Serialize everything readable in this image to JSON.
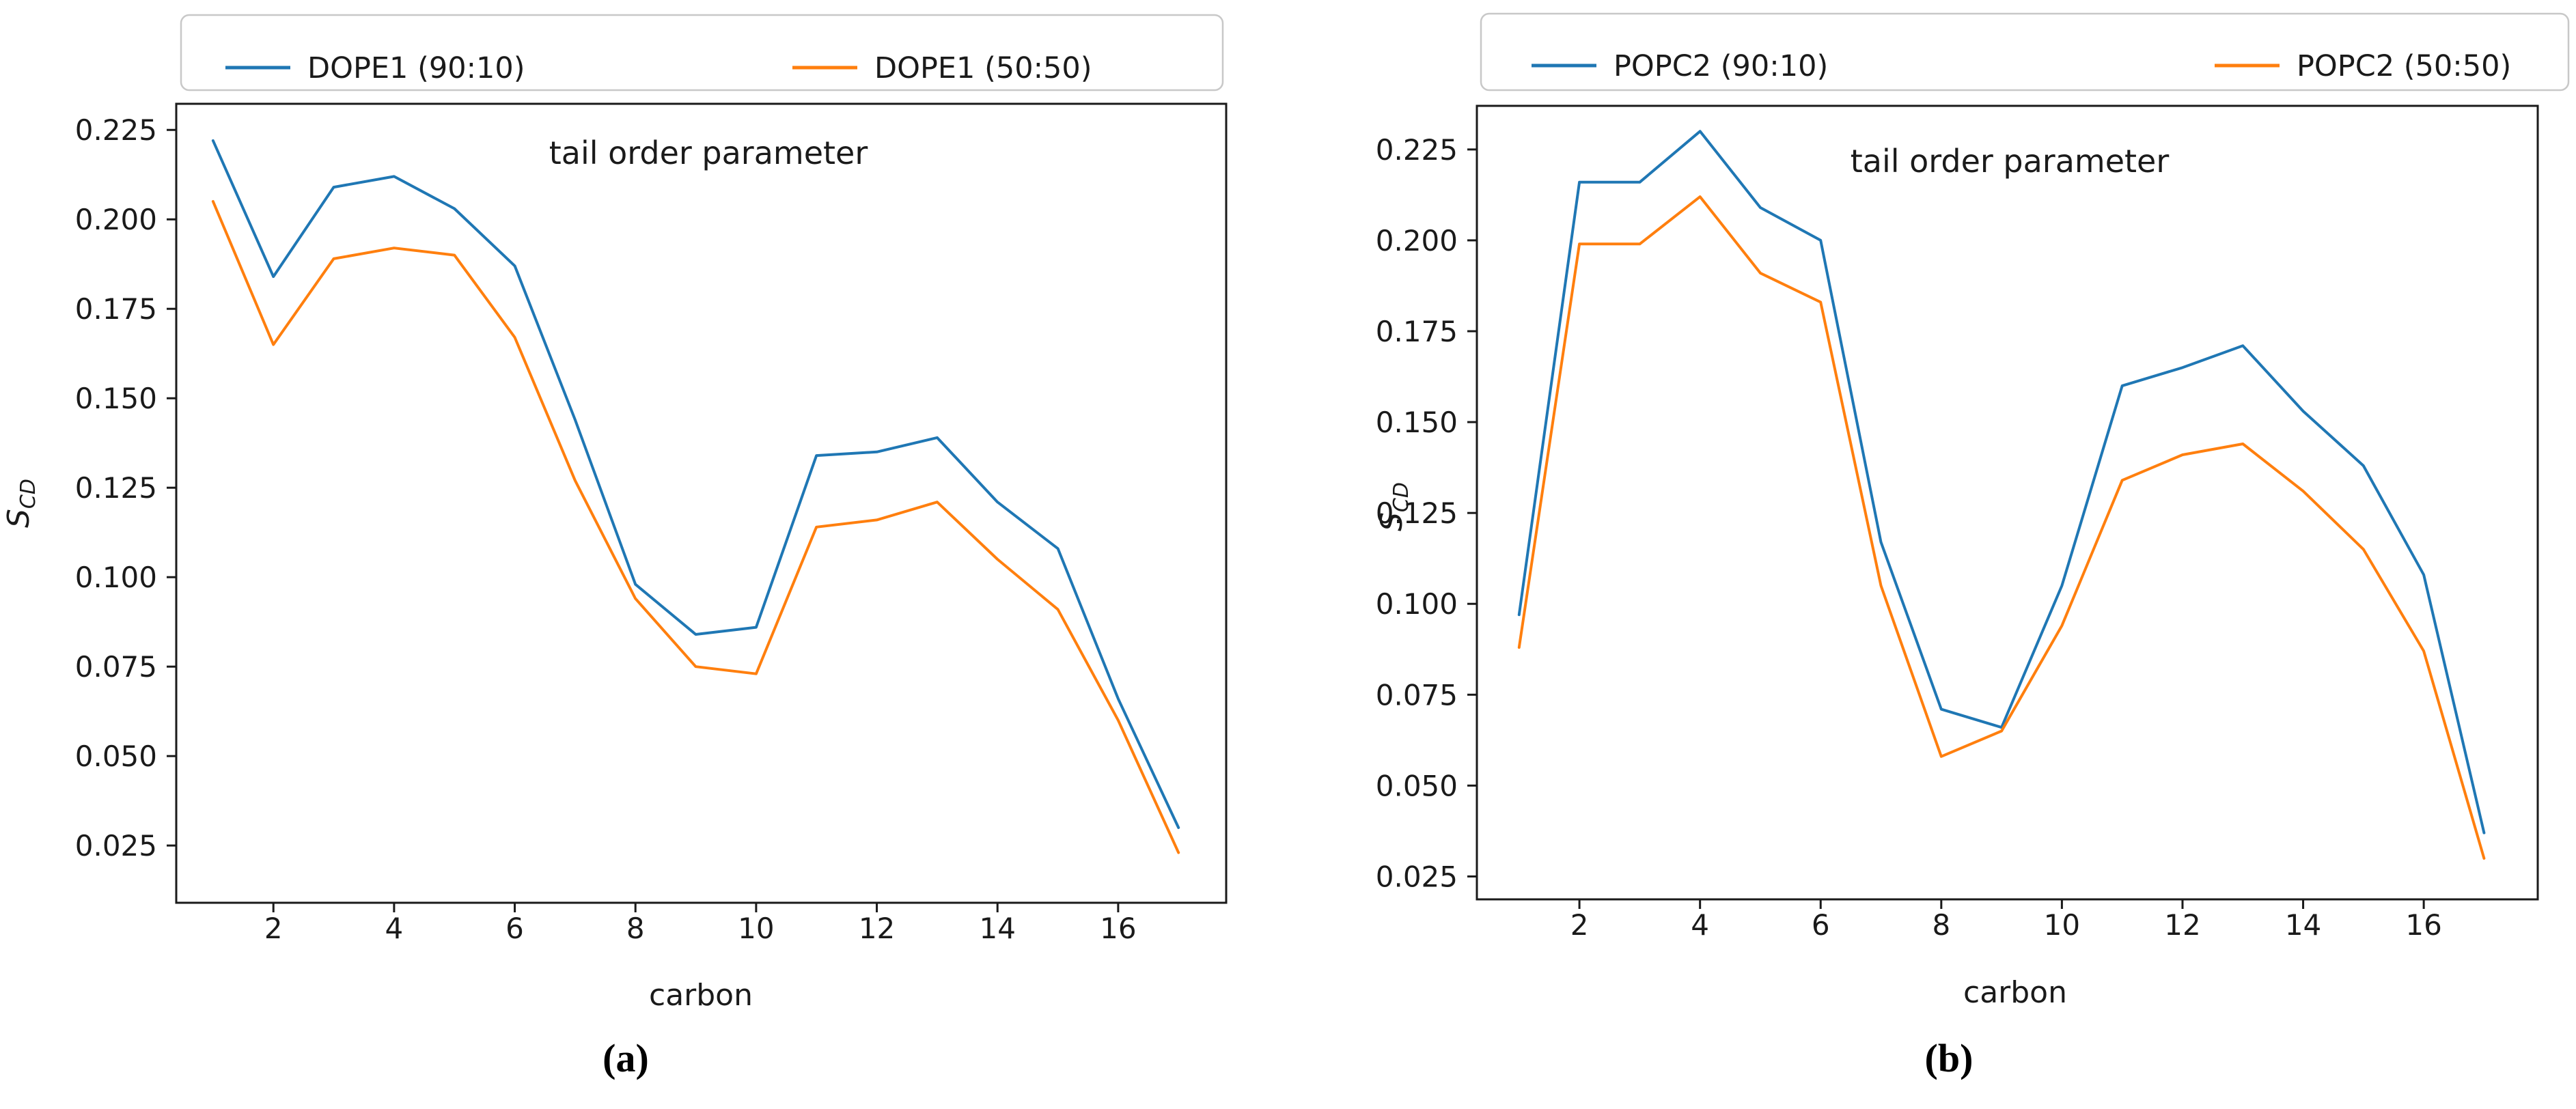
{
  "figure": {
    "background": "#ffffff",
    "captions": {
      "a": "(a)",
      "b": "(b)"
    }
  },
  "chart_data": [
    {
      "type": "line",
      "panel": "a",
      "caption": "(a)",
      "title": "tail order parameter",
      "xlabel": "carbon",
      "ylabel": "S",
      "ylabel_subscript": "CD",
      "legend_position": "top, 2 columns, outside plot",
      "grid": false,
      "x": [
        1,
        2,
        3,
        4,
        5,
        6,
        7,
        8,
        9,
        10,
        11,
        12,
        13,
        14,
        15,
        16,
        17
      ],
      "xticks": [
        2,
        4,
        6,
        8,
        10,
        12,
        14,
        16
      ],
      "yticks": [
        0.025,
        0.05,
        0.075,
        0.1,
        0.125,
        0.15,
        0.175,
        0.2,
        0.225
      ],
      "xlim": [
        0.39,
        17.79
      ],
      "ylim": [
        0.009,
        0.2323
      ],
      "series": [
        {
          "name": "DOPE1 (90:10)",
          "color": "#1f77b4",
          "values": [
            0.222,
            0.184,
            0.209,
            0.212,
            0.203,
            0.187,
            0.144,
            0.098,
            0.084,
            0.086,
            0.134,
            0.135,
            0.139,
            0.121,
            0.108,
            0.066,
            0.03
          ]
        },
        {
          "name": "DOPE1 (50:50)",
          "color": "#ff7f0e",
          "values": [
            0.205,
            0.165,
            0.189,
            0.192,
            0.19,
            0.167,
            0.127,
            0.094,
            0.075,
            0.073,
            0.114,
            0.116,
            0.121,
            0.105,
            0.091,
            0.06,
            0.023
          ]
        }
      ]
    },
    {
      "type": "line",
      "panel": "b",
      "caption": "(b)",
      "title": "tail order parameter",
      "xlabel": "carbon",
      "ylabel": "S",
      "ylabel_subscript": "CD",
      "legend_position": "top, 2 columns, outside plot",
      "grid": false,
      "x": [
        1,
        2,
        3,
        4,
        5,
        6,
        7,
        8,
        9,
        10,
        11,
        12,
        13,
        14,
        15,
        16,
        17
      ],
      "xticks": [
        2,
        4,
        6,
        8,
        10,
        12,
        14,
        16
      ],
      "yticks": [
        0.025,
        0.05,
        0.075,
        0.1,
        0.125,
        0.15,
        0.175,
        0.2,
        0.225
      ],
      "xlim": [
        0.3,
        17.89
      ],
      "ylim": [
        0.0187,
        0.237
      ],
      "series": [
        {
          "name": "POPC2 (90:10)",
          "color": "#1f77b4",
          "values": [
            0.097,
            0.216,
            0.216,
            0.23,
            0.209,
            0.2,
            0.117,
            0.071,
            0.066,
            0.105,
            0.16,
            0.165,
            0.171,
            0.153,
            0.138,
            0.108,
            0.037
          ]
        },
        {
          "name": "POPC2 (50:50)",
          "color": "#ff7f0e",
          "values": [
            0.088,
            0.199,
            0.199,
            0.212,
            0.191,
            0.183,
            0.105,
            0.058,
            0.065,
            0.094,
            0.134,
            0.141,
            0.144,
            0.131,
            0.115,
            0.087,
            0.03
          ]
        }
      ]
    }
  ]
}
